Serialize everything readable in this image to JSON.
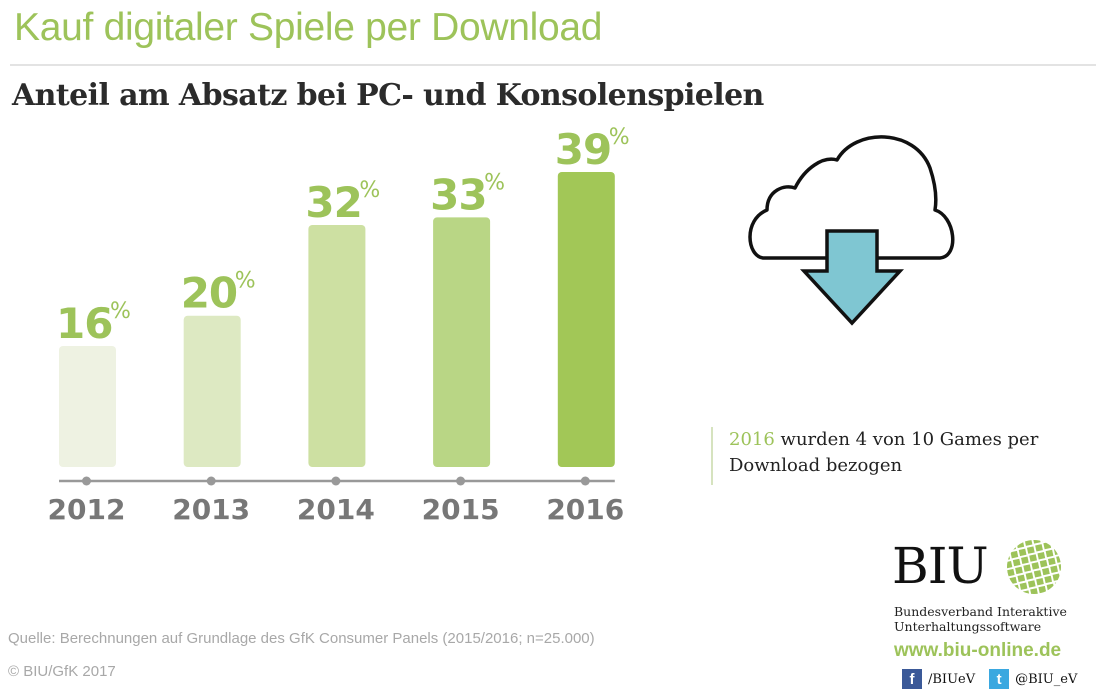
{
  "header": {
    "title": "Kauf digitaler Spiele per Download",
    "subtitle": "Anteil am Absatz bei PC- und Konsolenspielen"
  },
  "chart_data": {
    "type": "bar",
    "title": "Anteil am Absatz bei PC- und Konsolenspielen",
    "xlabel": "",
    "ylabel": "",
    "categories": [
      "2012",
      "2013",
      "2014",
      "2015",
      "2016"
    ],
    "values": [
      16,
      20,
      32,
      33,
      39
    ],
    "value_labels": [
      "16",
      "20",
      "32",
      "33",
      "39"
    ],
    "unit": "%",
    "ylim": [
      0,
      39
    ],
    "grid": false,
    "bar_colors": [
      "#eef2e2",
      "#dde9c2",
      "#cde0a2",
      "#b9d685",
      "#a2c757"
    ],
    "label_color": "#9dc35a",
    "axis_color": "#999999"
  },
  "illustration": {
    "icon": "cloud-download-icon",
    "arrow_color": "#7fc6d2"
  },
  "callout": {
    "year": "2016",
    "text_rest": " wurden 4 von 10 Games per",
    "line2": "Download bezogen"
  },
  "footer": {
    "source": "Quelle: Berechnungen auf Grundlage des GfK Consumer Panels (2015/2016; n=25.000)",
    "copyright": "© BIU/GfK 2017"
  },
  "brand": {
    "logo_text": "BIU",
    "name_line1": "Bundesverband Interaktive",
    "name_line2": "Unterhaltungssoftware",
    "url": "www.biu-online.de",
    "facebook_handle": "/BIUeV",
    "twitter_handle": "@BIU_eV",
    "accent": "#9dc35a"
  }
}
